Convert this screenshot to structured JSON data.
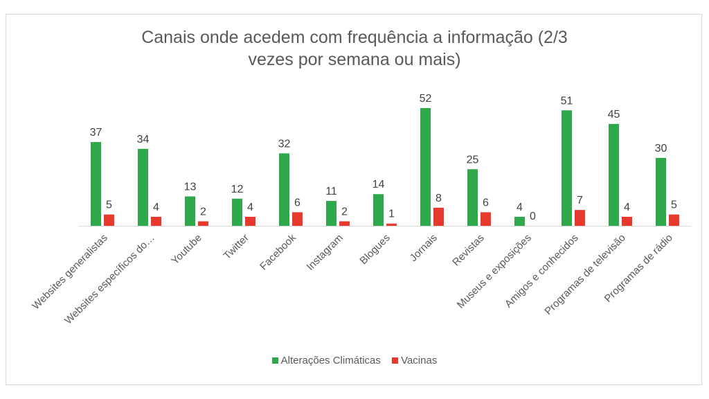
{
  "chart_data": {
    "type": "bar",
    "title": "Canais onde acedem com frequência a informação  (2/3 vezes por semana ou mais)",
    "title_lines": [
      "Canais onde acedem com frequência a informação  (2/3",
      "vezes por semana ou mais)"
    ],
    "categories": [
      "Websites generalistas",
      "Websites específicos do…",
      "Youtube",
      "Twitter",
      "Facebook",
      "Instagram",
      "Blogues",
      "Jornais",
      "Revistas",
      "Museus e exposições",
      "Amigos e conhecidos",
      "Programas de televisão",
      "Programas de rádio"
    ],
    "series": [
      {
        "name": "Alterações Climáticas",
        "color": "#2ea84a",
        "values": [
          37,
          34,
          13,
          12,
          32,
          11,
          14,
          52,
          25,
          4,
          51,
          45,
          30
        ]
      },
      {
        "name": "Vacinas",
        "color": "#e8392f",
        "values": [
          5,
          4,
          2,
          4,
          6,
          2,
          1,
          8,
          6,
          0,
          7,
          4,
          5
        ]
      }
    ],
    "xlabel": "",
    "ylabel": "",
    "ylim": [
      0,
      52
    ],
    "grid": false,
    "legend_position": "bottom"
  }
}
